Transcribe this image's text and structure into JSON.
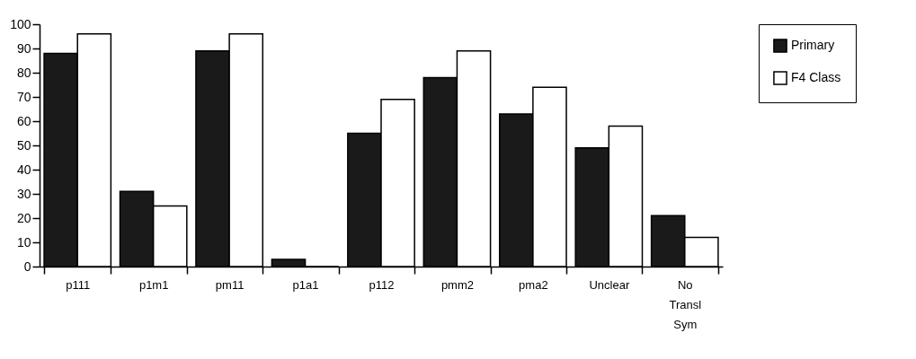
{
  "chart_data": {
    "type": "bar",
    "categories": [
      "p111",
      "p1m1",
      "pm11",
      "p1a1",
      "p112",
      "pmm2",
      "pma2",
      "Unclear",
      "No Transl Sym"
    ],
    "series": [
      {
        "name": "Primary",
        "color": "#1a1a1a",
        "values": [
          88,
          31,
          89,
          3,
          55,
          78,
          63,
          49,
          21
        ]
      },
      {
        "name": "F4 Class",
        "color": "#ffffff",
        "values": [
          96,
          25,
          96,
          0,
          69,
          89,
          74,
          58,
          12
        ]
      }
    ],
    "ylim": [
      0,
      100
    ],
    "yticks": [
      0,
      10,
      20,
      30,
      40,
      50,
      60,
      70,
      80,
      90,
      100
    ],
    "grid": false,
    "legend": "right"
  }
}
